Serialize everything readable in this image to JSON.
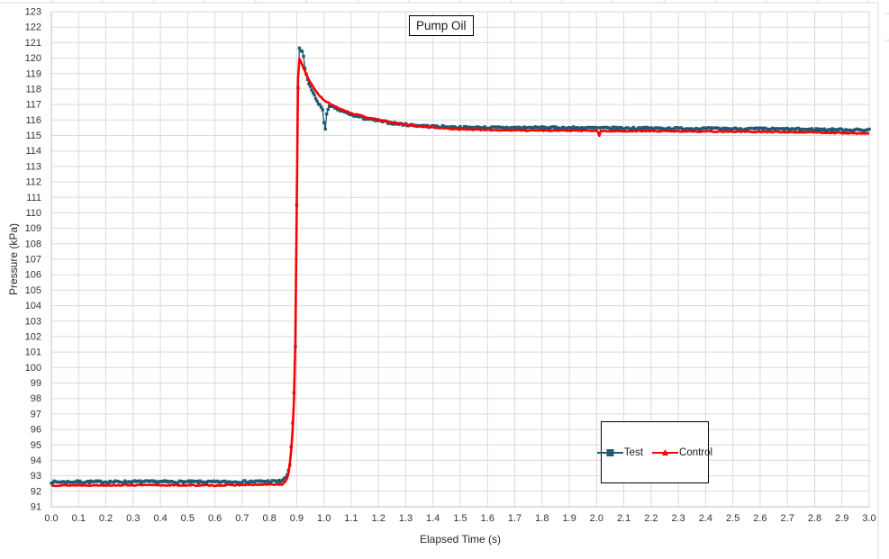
{
  "chart_data": {
    "type": "line",
    "title": "Pump Oil",
    "xlabel": "Elapsed Time (s)",
    "ylabel": "Pressure (kPa)",
    "xlim": [
      0.0,
      3.0
    ],
    "ylim": [
      91,
      123
    ],
    "x_tick_step": 0.1,
    "y_tick_step": 1,
    "grid": true,
    "legend_position": "inside-lower-right",
    "sample_step": 0.005,
    "series": [
      {
        "name": "Test",
        "color": "#1F5B75",
        "marker": "square",
        "noise": 0.07,
        "keypoints": [
          [
            0,
            92.6
          ],
          [
            0.3,
            92.62
          ],
          [
            0.6,
            92.6
          ],
          [
            0.84,
            92.65
          ],
          [
            0.855,
            92.8
          ],
          [
            0.865,
            93.0
          ],
          [
            0.875,
            93.7
          ],
          [
            0.88,
            94.9
          ],
          [
            0.885,
            96.4
          ],
          [
            0.89,
            98.4
          ],
          [
            0.895,
            101.3
          ],
          [
            0.898,
            106.0
          ],
          [
            0.9,
            110.5
          ],
          [
            0.902,
            113.2
          ],
          [
            0.905,
            118.0
          ],
          [
            0.908,
            120.7
          ],
          [
            0.912,
            120.5
          ],
          [
            0.92,
            120.45
          ],
          [
            0.925,
            120.1
          ],
          [
            0.928,
            119.4
          ],
          [
            0.935,
            118.95
          ],
          [
            0.94,
            118.6
          ],
          [
            0.95,
            118.15
          ],
          [
            0.96,
            117.75
          ],
          [
            0.97,
            117.4
          ],
          [
            0.98,
            117.1
          ],
          [
            0.99,
            116.8
          ],
          [
            0.995,
            116.6
          ],
          [
            1.0,
            115.85
          ],
          [
            1.005,
            115.45
          ],
          [
            1.01,
            116.45
          ],
          [
            1.02,
            116.85
          ],
          [
            1.04,
            116.8
          ],
          [
            1.06,
            116.6
          ],
          [
            1.1,
            116.35
          ],
          [
            1.15,
            116.1
          ],
          [
            1.2,
            115.95
          ],
          [
            1.25,
            115.8
          ],
          [
            1.3,
            115.7
          ],
          [
            1.35,
            115.63
          ],
          [
            1.4,
            115.58
          ],
          [
            1.45,
            115.55
          ],
          [
            1.5,
            115.52
          ],
          [
            1.6,
            115.5
          ],
          [
            1.8,
            115.5
          ],
          [
            2.0,
            115.48
          ],
          [
            2.3,
            115.45
          ],
          [
            2.6,
            115.42
          ],
          [
            3.0,
            115.35
          ]
        ]
      },
      {
        "name": "Control",
        "color": "#FE0000",
        "marker": "triangle",
        "noise": 0.035,
        "keypoints": [
          [
            0,
            92.38
          ],
          [
            0.3,
            92.4
          ],
          [
            0.6,
            92.38
          ],
          [
            0.85,
            92.45
          ],
          [
            0.862,
            92.7
          ],
          [
            0.872,
            93.3
          ],
          [
            0.88,
            94.6
          ],
          [
            0.888,
            96.8
          ],
          [
            0.893,
            99.5
          ],
          [
            0.897,
            104.0
          ],
          [
            0.9,
            110.0
          ],
          [
            0.903,
            116.0
          ],
          [
            0.906,
            120.1
          ],
          [
            0.91,
            119.95
          ],
          [
            0.92,
            119.6
          ],
          [
            0.93,
            119.15
          ],
          [
            0.94,
            118.75
          ],
          [
            0.96,
            118.15
          ],
          [
            0.98,
            117.65
          ],
          [
            1.0,
            117.25
          ],
          [
            1.05,
            116.8
          ],
          [
            1.1,
            116.45
          ],
          [
            1.15,
            116.2
          ],
          [
            1.2,
            116.0
          ],
          [
            1.25,
            115.83
          ],
          [
            1.3,
            115.7
          ],
          [
            1.35,
            115.6
          ],
          [
            1.4,
            115.52
          ],
          [
            1.45,
            115.45
          ],
          [
            1.5,
            115.4
          ],
          [
            1.6,
            115.35
          ],
          [
            1.8,
            115.32
          ],
          [
            2.0,
            115.3
          ],
          [
            2.005,
            115.22
          ],
          [
            2.01,
            115.0
          ],
          [
            2.015,
            115.28
          ],
          [
            2.2,
            115.28
          ],
          [
            2.5,
            115.25
          ],
          [
            2.8,
            115.2
          ],
          [
            3.0,
            115.12
          ]
        ]
      }
    ],
    "colors": {
      "grid": "#DADADA",
      "axis_line": "#BFBFBF",
      "tick_text": "#333333",
      "background": "#FFFFFF"
    }
  }
}
